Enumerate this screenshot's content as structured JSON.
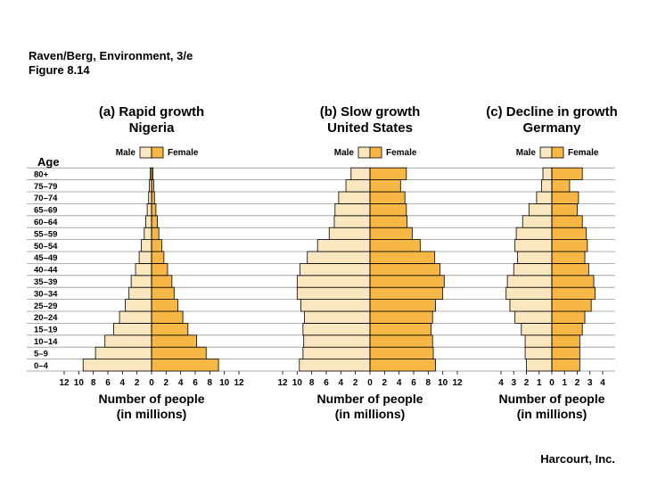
{
  "header": {
    "line1": "Raven/Berg, Environment, 3/e",
    "line2": "Figure 8.14"
  },
  "footer": {
    "credit": "Harcourt, Inc."
  },
  "chart_data": {
    "type": "bar",
    "orientation": "horizontal-population-pyramid",
    "y_axis_title": "Age",
    "age_groups": [
      "0–4",
      "5–9",
      "10–14",
      "15–19",
      "20–24",
      "25–29",
      "30–34",
      "35–39",
      "40–44",
      "45–49",
      "50–54",
      "55–59",
      "60–64",
      "65–69",
      "70–74",
      "75–79",
      "80+"
    ],
    "legend": {
      "male": "Male",
      "female": "Female"
    },
    "colors": {
      "male": "#fbe7bf",
      "female": "#f6b745",
      "outline": "#000000",
      "grid": "#999999"
    },
    "grid": true,
    "panels": [
      {
        "title": "(a) Rapid growth",
        "subtitle": "Nigeria",
        "xlabel_line1": "Number of people",
        "xlabel_line2": "(in millions)",
        "xlim": 12,
        "ticks": [
          12,
          10,
          8,
          6,
          4,
          2,
          0,
          2,
          4,
          6,
          8,
          10,
          12
        ],
        "series": [
          {
            "name": "Male",
            "values": [
              9.4,
              7.7,
              6.4,
              5.2,
              4.4,
              3.6,
              3.1,
              2.8,
              2.2,
              1.7,
              1.4,
              1.0,
              0.8,
              0.6,
              0.4,
              0.3,
              0.2
            ]
          },
          {
            "name": "Female",
            "values": [
              9.2,
              7.5,
              6.2,
              5.0,
              4.3,
              3.6,
              3.1,
              2.8,
              2.2,
              1.7,
              1.4,
              1.0,
              0.8,
              0.6,
              0.4,
              0.3,
              0.2
            ]
          }
        ]
      },
      {
        "title": "(b) Slow growth",
        "subtitle": "United States",
        "xlabel_line1": "Number of people",
        "xlabel_line2": "(in millions)",
        "xlim": 12,
        "ticks": [
          12,
          10,
          8,
          6,
          4,
          2,
          0,
          2,
          4,
          6,
          8,
          10,
          12
        ],
        "series": [
          {
            "name": "Male",
            "values": [
              9.7,
              9.2,
              9.1,
              9.2,
              9.0,
              9.5,
              10.0,
              10.0,
              9.6,
              8.6,
              7.2,
              5.6,
              4.9,
              4.8,
              4.3,
              3.3,
              2.6
            ]
          },
          {
            "name": "Female",
            "values": [
              9.0,
              8.7,
              8.6,
              8.4,
              8.6,
              9.0,
              10.0,
              10.2,
              9.6,
              8.9,
              6.9,
              5.8,
              5.1,
              5.0,
              4.8,
              4.2,
              5.0
            ]
          }
        ]
      },
      {
        "title": "(c) Decline in growth",
        "subtitle": "Germany",
        "xlabel_line1": "Number of people",
        "xlabel_line2": "(in millions)",
        "xlim": 4,
        "ticks": [
          4,
          3,
          2,
          1,
          0,
          1,
          2,
          3,
          4
        ],
        "series": [
          {
            "name": "Male",
            "values": [
              2.0,
              2.1,
              2.1,
              2.4,
              2.9,
              3.3,
              3.6,
              3.5,
              3.0,
              2.7,
              2.9,
              2.8,
              2.3,
              1.8,
              1.2,
              0.8,
              0.7
            ]
          },
          {
            "name": "Female",
            "values": [
              2.2,
              2.2,
              2.2,
              2.4,
              2.6,
              3.1,
              3.4,
              3.3,
              2.9,
              2.6,
              2.8,
              2.7,
              2.4,
              2.0,
              2.1,
              1.4,
              2.4
            ]
          }
        ]
      }
    ]
  }
}
